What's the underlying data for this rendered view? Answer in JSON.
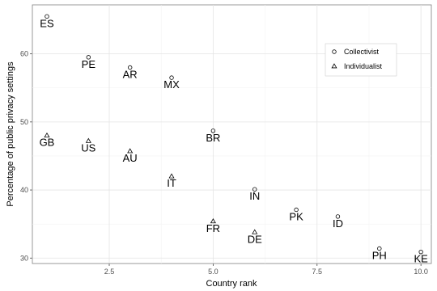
{
  "chart_data": {
    "type": "scatter",
    "xlabel": "Country rank",
    "ylabel": "Percentage of public privacy settings",
    "xlim": [
      0.65,
      10.25
    ],
    "ylim": [
      29.2,
      67.2
    ],
    "xticks": [
      2.5,
      5.0,
      7.5,
      10.0
    ],
    "xtick_labels": [
      "2.5",
      "5.0",
      "7.5",
      "10.0"
    ],
    "yticks": [
      30,
      40,
      50,
      60
    ],
    "ytick_labels": [
      "30",
      "40",
      "50",
      "60"
    ],
    "grid": true,
    "legend_position": "top-right",
    "series": [
      {
        "name": "Collectivist",
        "marker": "circle",
        "points": [
          {
            "label": "ES",
            "x": 1,
            "y": 65.5
          },
          {
            "label": "PE",
            "x": 2,
            "y": 59.5
          },
          {
            "label": "AR",
            "x": 3,
            "y": 58.0
          },
          {
            "label": "MX",
            "x": 4,
            "y": 56.5
          },
          {
            "label": "BR",
            "x": 5,
            "y": 48.7
          },
          {
            "label": "IN",
            "x": 6,
            "y": 40.1
          },
          {
            "label": "PK",
            "x": 7,
            "y": 37.1
          },
          {
            "label": "ID",
            "x": 8,
            "y": 36.1
          },
          {
            "label": "PH",
            "x": 9,
            "y": 31.4
          },
          {
            "label": "KE",
            "x": 10,
            "y": 30.9
          }
        ]
      },
      {
        "name": "Individualist",
        "marker": "triangle",
        "points": [
          {
            "label": "GB",
            "x": 1,
            "y": 48.0
          },
          {
            "label": "US",
            "x": 2,
            "y": 47.2
          },
          {
            "label": "AU",
            "x": 3,
            "y": 45.7
          },
          {
            "label": "IT",
            "x": 4,
            "y": 42.0
          },
          {
            "label": "FR",
            "x": 5,
            "y": 35.4
          },
          {
            "label": "DE",
            "x": 6,
            "y": 33.8
          }
        ]
      }
    ]
  }
}
